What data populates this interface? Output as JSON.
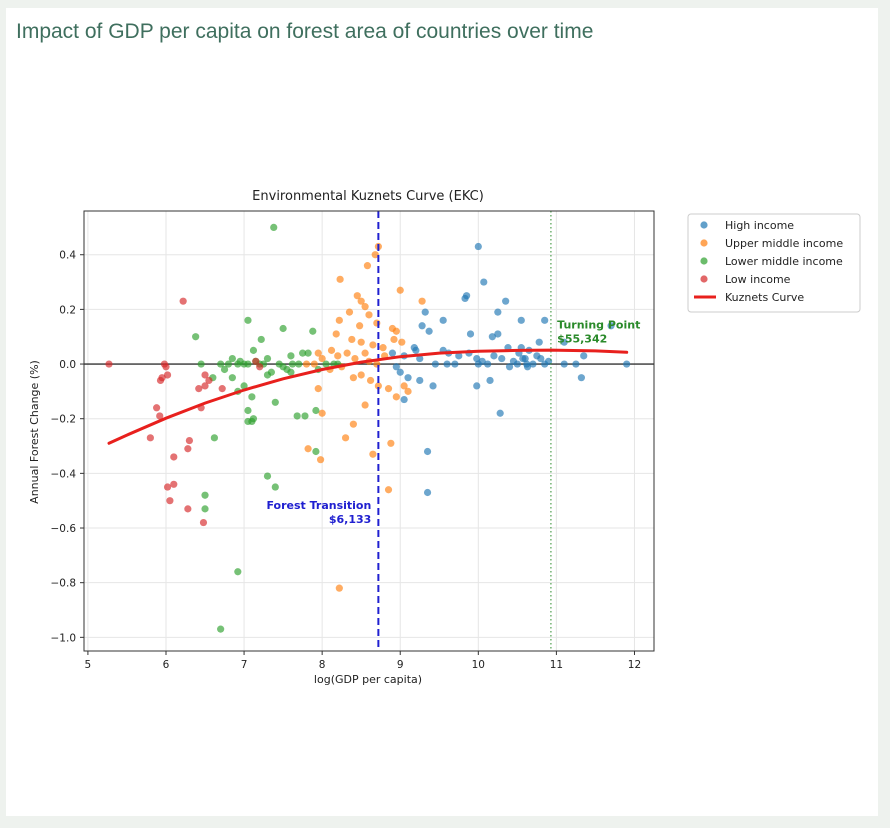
{
  "page": {
    "title": "Impact of GDP per capita on forest area of countries over time"
  },
  "colors": {
    "high_income": "#1f77b4",
    "upper_middle_income": "#ff7f0e",
    "lower_middle_income": "#2ca02c",
    "low_income": "#d62728",
    "kuznets_curve": "#e8201d",
    "forest_transition": "#2020d0",
    "turning_point": "#2a8a2a",
    "zero_line": "#333333"
  },
  "chart_data": {
    "type": "scatter",
    "title": "Environmental Kuznets Curve (EKC)",
    "xlabel": "log(GDP per capita)",
    "ylabel": "Annual Forest Change (%)",
    "xlim": [
      4.95,
      12.25
    ],
    "ylim": [
      -1.05,
      0.56
    ],
    "xticks": [
      5,
      6,
      7,
      8,
      9,
      10,
      11,
      12
    ],
    "yticks": [
      -1.0,
      -0.8,
      -0.6,
      -0.4,
      -0.2,
      0.0,
      0.2,
      0.4
    ],
    "ytick_labels": [
      "−1.0",
      "−0.8",
      "−0.6",
      "−0.4",
      "−0.2",
      "0.0",
      "0.2",
      "0.4"
    ],
    "grid": true,
    "legend_position": "outside-right",
    "series": [
      {
        "name": "High income",
        "color": "#1f77b4",
        "points": [
          [
            10.0,
            0.43
          ],
          [
            10.07,
            0.3
          ],
          [
            10.35,
            0.23
          ],
          [
            10.25,
            0.19
          ],
          [
            9.85,
            0.25
          ],
          [
            9.83,
            0.24
          ],
          [
            9.32,
            0.19
          ],
          [
            9.55,
            0.16
          ],
          [
            9.28,
            0.14
          ],
          [
            9.37,
            0.12
          ],
          [
            10.55,
            0.16
          ],
          [
            10.85,
            0.16
          ],
          [
            10.78,
            0.08
          ],
          [
            9.9,
            0.11
          ],
          [
            10.18,
            0.1
          ],
          [
            10.25,
            0.11
          ],
          [
            9.18,
            0.06
          ],
          [
            9.2,
            0.05
          ],
          [
            9.25,
            0.02
          ],
          [
            9.05,
            0.03
          ],
          [
            9.55,
            0.05
          ],
          [
            9.62,
            0.04
          ],
          [
            9.75,
            0.03
          ],
          [
            9.88,
            0.04
          ],
          [
            9.98,
            0.02
          ],
          [
            10.05,
            0.01
          ],
          [
            10.12,
            0.0
          ],
          [
            10.2,
            0.03
          ],
          [
            10.3,
            0.02
          ],
          [
            10.38,
            0.06
          ],
          [
            10.45,
            0.01
          ],
          [
            10.52,
            0.04
          ],
          [
            10.55,
            0.06
          ],
          [
            10.6,
            0.02
          ],
          [
            10.62,
            0.0
          ],
          [
            10.65,
            0.05
          ],
          [
            10.7,
            0.0
          ],
          [
            10.75,
            0.03
          ],
          [
            10.8,
            0.02
          ],
          [
            10.85,
            0.0
          ],
          [
            10.9,
            0.01
          ],
          [
            11.1,
            0.0
          ],
          [
            11.25,
            0.0
          ],
          [
            11.35,
            0.03
          ],
          [
            11.9,
            0.0
          ],
          [
            11.7,
            0.14
          ],
          [
            11.1,
            0.08
          ],
          [
            10.5,
            0.0
          ],
          [
            10.57,
            0.02
          ],
          [
            10.63,
            -0.01
          ],
          [
            10.4,
            -0.01
          ],
          [
            10.0,
            0.0
          ],
          [
            9.7,
            0.0
          ],
          [
            9.45,
            0.0
          ],
          [
            8.95,
            -0.01
          ],
          [
            9.0,
            -0.03
          ],
          [
            9.1,
            -0.05
          ],
          [
            9.25,
            -0.06
          ],
          [
            9.42,
            -0.08
          ],
          [
            9.98,
            -0.08
          ],
          [
            10.15,
            -0.06
          ],
          [
            10.28,
            -0.18
          ],
          [
            11.32,
            -0.05
          ],
          [
            9.05,
            -0.13
          ],
          [
            9.35,
            -0.32
          ],
          [
            9.35,
            -0.47
          ],
          [
            8.9,
            0.04
          ],
          [
            9.6,
            0.0
          ]
        ]
      },
      {
        "name": "Upper middle income",
        "color": "#ff7f0e",
        "points": [
          [
            8.72,
            0.43
          ],
          [
            8.68,
            0.4
          ],
          [
            8.58,
            0.36
          ],
          [
            8.23,
            0.31
          ],
          [
            9.28,
            0.23
          ],
          [
            9.0,
            0.27
          ],
          [
            8.45,
            0.25
          ],
          [
            8.5,
            0.23
          ],
          [
            8.55,
            0.21
          ],
          [
            8.6,
            0.18
          ],
          [
            8.35,
            0.19
          ],
          [
            8.22,
            0.16
          ],
          [
            8.48,
            0.14
          ],
          [
            8.7,
            0.15
          ],
          [
            8.9,
            0.13
          ],
          [
            8.95,
            0.12
          ],
          [
            8.18,
            0.11
          ],
          [
            8.38,
            0.09
          ],
          [
            8.5,
            0.08
          ],
          [
            8.65,
            0.07
          ],
          [
            8.78,
            0.06
          ],
          [
            8.92,
            0.09
          ],
          [
            9.02,
            0.08
          ],
          [
            8.12,
            0.05
          ],
          [
            8.2,
            0.03
          ],
          [
            8.32,
            0.04
          ],
          [
            8.42,
            0.02
          ],
          [
            8.55,
            0.04
          ],
          [
            8.6,
            0.01
          ],
          [
            8.7,
            0.0
          ],
          [
            8.8,
            0.03
          ],
          [
            7.9,
            0.0
          ],
          [
            7.95,
            0.04
          ],
          [
            7.8,
            0.0
          ],
          [
            8.0,
            0.02
          ],
          [
            8.1,
            -0.02
          ],
          [
            8.25,
            -0.01
          ],
          [
            8.4,
            -0.05
          ],
          [
            8.5,
            -0.04
          ],
          [
            8.62,
            -0.06
          ],
          [
            8.72,
            -0.08
          ],
          [
            8.85,
            -0.09
          ],
          [
            8.95,
            -0.12
          ],
          [
            9.05,
            -0.08
          ],
          [
            9.1,
            -0.1
          ],
          [
            8.55,
            -0.15
          ],
          [
            8.4,
            -0.22
          ],
          [
            8.3,
            -0.27
          ],
          [
            8.0,
            -0.18
          ],
          [
            7.95,
            -0.09
          ],
          [
            7.82,
            -0.31
          ],
          [
            7.98,
            -0.35
          ],
          [
            8.65,
            -0.33
          ],
          [
            8.88,
            -0.29
          ],
          [
            8.85,
            -0.46
          ],
          [
            8.22,
            -0.82
          ]
        ]
      },
      {
        "name": "Lower middle income",
        "color": "#2ca02c",
        "points": [
          [
            7.38,
            0.5
          ],
          [
            6.38,
            0.1
          ],
          [
            7.05,
            0.16
          ],
          [
            7.22,
            0.09
          ],
          [
            7.5,
            0.13
          ],
          [
            7.88,
            0.12
          ],
          [
            7.12,
            0.05
          ],
          [
            7.3,
            0.02
          ],
          [
            7.6,
            0.03
          ],
          [
            7.75,
            0.04
          ],
          [
            7.82,
            0.04
          ],
          [
            6.8,
            0.0
          ],
          [
            6.85,
            0.02
          ],
          [
            6.92,
            0.0
          ],
          [
            6.95,
            0.01
          ],
          [
            7.0,
            0.0
          ],
          [
            7.05,
            0.0
          ],
          [
            7.15,
            0.01
          ],
          [
            7.2,
            0.0
          ],
          [
            7.25,
            0.0
          ],
          [
            7.45,
            0.0
          ],
          [
            7.5,
            -0.01
          ],
          [
            7.55,
            -0.02
          ],
          [
            7.62,
            0.0
          ],
          [
            7.7,
            0.0
          ],
          [
            7.95,
            -0.02
          ],
          [
            8.05,
            0.0
          ],
          [
            8.15,
            0.0
          ],
          [
            8.2,
            0.0
          ],
          [
            6.45,
            0.0
          ],
          [
            6.7,
            0.0
          ],
          [
            6.75,
            -0.02
          ],
          [
            6.85,
            -0.05
          ],
          [
            6.92,
            -0.1
          ],
          [
            7.0,
            -0.08
          ],
          [
            6.6,
            -0.05
          ],
          [
            7.1,
            -0.12
          ],
          [
            7.4,
            -0.14
          ],
          [
            7.05,
            -0.17
          ],
          [
            7.3,
            -0.04
          ],
          [
            7.35,
            -0.03
          ],
          [
            7.68,
            -0.19
          ],
          [
            7.78,
            -0.19
          ],
          [
            7.92,
            -0.17
          ],
          [
            7.05,
            -0.21
          ],
          [
            7.1,
            -0.21
          ],
          [
            7.12,
            -0.2
          ],
          [
            6.62,
            -0.27
          ],
          [
            7.92,
            -0.32
          ],
          [
            7.3,
            -0.41
          ],
          [
            7.4,
            -0.45
          ],
          [
            6.5,
            -0.48
          ],
          [
            6.5,
            -0.53
          ],
          [
            6.92,
            -0.76
          ],
          [
            6.7,
            -0.97
          ],
          [
            7.6,
            -0.03
          ]
        ]
      },
      {
        "name": "Low income",
        "color": "#d62728",
        "points": [
          [
            5.27,
            0.0
          ],
          [
            6.22,
            0.23
          ],
          [
            5.98,
            0.0
          ],
          [
            6.0,
            -0.01
          ],
          [
            6.02,
            -0.04
          ],
          [
            5.95,
            -0.05
          ],
          [
            5.93,
            -0.06
          ],
          [
            6.5,
            -0.04
          ],
          [
            6.55,
            -0.06
          ],
          [
            6.5,
            -0.08
          ],
          [
            6.42,
            -0.09
          ],
          [
            6.72,
            -0.09
          ],
          [
            7.15,
            0.01
          ],
          [
            7.2,
            -0.01
          ],
          [
            5.88,
            -0.16
          ],
          [
            5.92,
            -0.19
          ],
          [
            6.45,
            -0.16
          ],
          [
            5.8,
            -0.27
          ],
          [
            6.3,
            -0.28
          ],
          [
            6.28,
            -0.31
          ],
          [
            6.1,
            -0.34
          ],
          [
            6.02,
            -0.45
          ],
          [
            6.1,
            -0.44
          ],
          [
            6.05,
            -0.5
          ],
          [
            6.28,
            -0.53
          ],
          [
            6.48,
            -0.58
          ]
        ]
      }
    ],
    "curve": {
      "name": "Kuznets Curve",
      "color": "#e8201d",
      "points": [
        [
          5.27,
          -0.29
        ],
        [
          5.5,
          -0.26
        ],
        [
          6.0,
          -0.198
        ],
        [
          6.5,
          -0.143
        ],
        [
          7.0,
          -0.095
        ],
        [
          7.5,
          -0.054
        ],
        [
          8.0,
          -0.02
        ],
        [
          8.5,
          0.007
        ],
        [
          9.0,
          0.027
        ],
        [
          9.5,
          0.04
        ],
        [
          10.0,
          0.047
        ],
        [
          10.5,
          0.05
        ],
        [
          10.93,
          0.051
        ],
        [
          11.5,
          0.048
        ],
        [
          11.9,
          0.043
        ]
      ]
    },
    "vlines": [
      {
        "x": 8.72,
        "style": "dashed",
        "color": "#2020d0",
        "label": [
          "Forest Transition",
          "$6,133"
        ],
        "label_pos": [
          8.63,
          -0.53
        ],
        "anchor": "end"
      },
      {
        "x": 10.93,
        "style": "dotted",
        "color": "#2a8a2a",
        "label": [
          "Turning Point",
          "$55,342"
        ],
        "label_pos": [
          11.01,
          0.13
        ],
        "anchor": "start"
      }
    ],
    "hline": 0.0
  }
}
